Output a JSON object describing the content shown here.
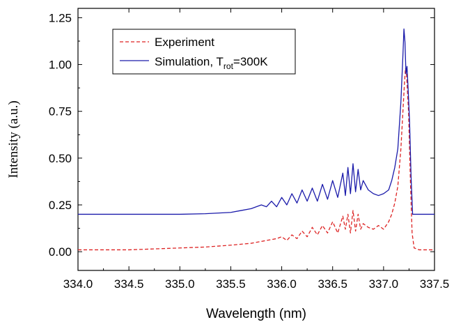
{
  "chart_data": {
    "type": "line",
    "xlabel": "Wavelength (nm)",
    "ylabel": "Intensity (a.u.)",
    "xlim": [
      334.0,
      337.5
    ],
    "ylim": [
      -0.1,
      1.3
    ],
    "xticks": [
      334.0,
      334.5,
      335.0,
      335.5,
      336.0,
      336.5,
      337.0,
      337.5
    ],
    "xtick_labels": [
      "334.0",
      "334.5",
      "335.0",
      "335.5",
      "336.0",
      "336.5",
      "337.0",
      "337.5"
    ],
    "yticks": [
      0.0,
      0.25,
      0.5,
      0.75,
      1.0,
      1.25
    ],
    "ytick_labels": [
      "0.00",
      "0.25",
      "0.50",
      "0.75",
      "1.00",
      "1.25"
    ],
    "legend_position": "top-left",
    "series": [
      {
        "name": "Experiment",
        "legend_label": "Experiment",
        "color": "#dd2222",
        "style": "dashed",
        "x": [
          334.0,
          334.25,
          334.5,
          334.75,
          335.0,
          335.25,
          335.5,
          335.7,
          335.85,
          335.95,
          336.0,
          336.05,
          336.1,
          336.15,
          336.2,
          336.25,
          336.3,
          336.35,
          336.4,
          336.45,
          336.5,
          336.55,
          336.6,
          336.625,
          336.65,
          336.675,
          336.7,
          336.725,
          336.75,
          336.775,
          336.8,
          336.85,
          336.9,
          336.95,
          337.0,
          337.05,
          337.08,
          337.11,
          337.14,
          337.17,
          337.19,
          337.205,
          337.215,
          337.225,
          337.235,
          337.245,
          337.255,
          337.265,
          337.28,
          337.3,
          337.35,
          337.5
        ],
        "y": [
          0.01,
          0.01,
          0.01,
          0.015,
          0.02,
          0.025,
          0.035,
          0.045,
          0.06,
          0.07,
          0.08,
          0.06,
          0.09,
          0.07,
          0.11,
          0.08,
          0.13,
          0.09,
          0.14,
          0.1,
          0.16,
          0.1,
          0.19,
          0.12,
          0.2,
          0.1,
          0.22,
          0.11,
          0.2,
          0.12,
          0.15,
          0.13,
          0.12,
          0.14,
          0.12,
          0.16,
          0.2,
          0.26,
          0.35,
          0.55,
          0.75,
          0.9,
          0.98,
          0.95,
          0.85,
          0.75,
          0.55,
          0.35,
          0.1,
          0.02,
          0.01,
          0.01
        ]
      },
      {
        "name": "Simulation, T_rot=300K",
        "legend_label": "Simulation, T",
        "legend_sub": "rot",
        "legend_suffix": "=300K",
        "color": "#1a1aaa",
        "style": "solid",
        "x": [
          334.0,
          334.25,
          334.5,
          334.75,
          335.0,
          335.25,
          335.5,
          335.6,
          335.7,
          335.8,
          335.85,
          335.9,
          335.95,
          336.0,
          336.05,
          336.1,
          336.15,
          336.2,
          336.25,
          336.3,
          336.35,
          336.4,
          336.45,
          336.5,
          336.55,
          336.6,
          336.625,
          336.65,
          336.675,
          336.7,
          336.725,
          336.75,
          336.775,
          336.8,
          336.85,
          336.9,
          336.95,
          337.0,
          337.05,
          337.08,
          337.11,
          337.14,
          337.17,
          337.19,
          337.2,
          337.21,
          337.22,
          337.23,
          337.24,
          337.255,
          337.27,
          337.285,
          337.3,
          337.35,
          337.5
        ],
        "y": [
          0.2,
          0.2,
          0.2,
          0.2,
          0.2,
          0.203,
          0.21,
          0.22,
          0.23,
          0.25,
          0.24,
          0.27,
          0.24,
          0.29,
          0.25,
          0.31,
          0.26,
          0.33,
          0.27,
          0.34,
          0.27,
          0.36,
          0.28,
          0.38,
          0.29,
          0.42,
          0.3,
          0.45,
          0.31,
          0.47,
          0.32,
          0.44,
          0.33,
          0.38,
          0.33,
          0.31,
          0.3,
          0.31,
          0.33,
          0.38,
          0.45,
          0.55,
          0.8,
          1.05,
          1.19,
          1.12,
          0.95,
          0.99,
          0.88,
          0.7,
          0.4,
          0.2,
          0.2,
          0.2,
          0.2
        ]
      }
    ]
  }
}
